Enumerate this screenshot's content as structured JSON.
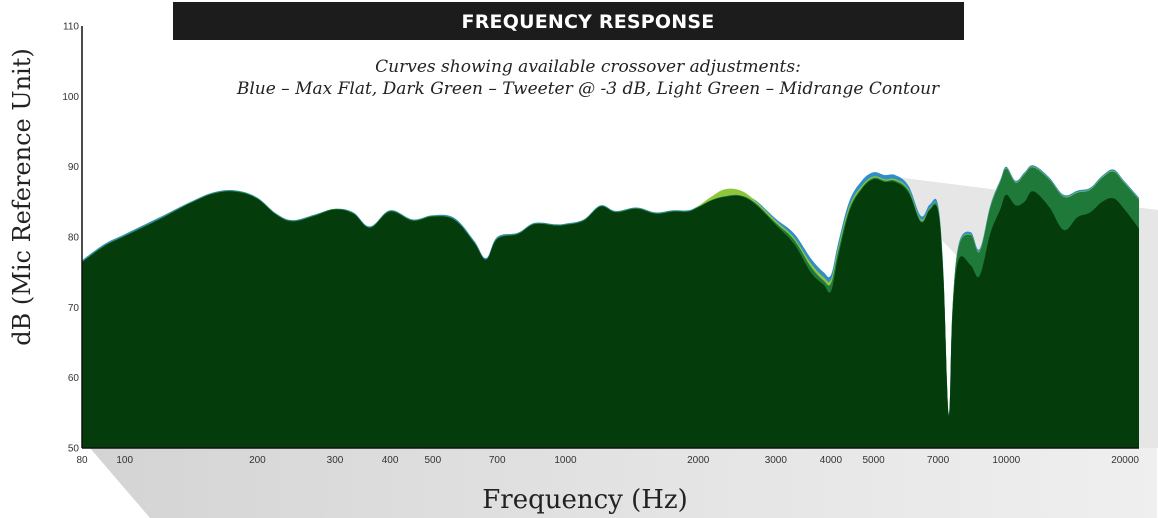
{
  "banner_title": "FREQUENCY RESPONSE",
  "subtitle_line1": "Curves showing available crossover adjustments:",
  "subtitle_line2": "Blue – Max Flat, Dark Green – Tweeter @ -3 dB, Light Green – Midrange Contour",
  "colors": {
    "background": "#ffffff",
    "banner": "#1c1c1c",
    "shadow": "#d5d5d5"
  },
  "chart_data": {
    "type": "area",
    "xscale": "log",
    "xlabel": "Frequency (Hz)",
    "ylabel": "dB (Mic Reference Unit)",
    "xlim": [
      80,
      20000
    ],
    "ylim": [
      50,
      110
    ],
    "grid": false,
    "legend": "none",
    "yticks": [
      {
        "value": 50,
        "label": "50"
      },
      {
        "value": 60,
        "label": "60"
      },
      {
        "value": 70,
        "label": "70"
      },
      {
        "value": 80,
        "label": "80"
      },
      {
        "value": 90,
        "label": "90"
      },
      {
        "value": 100,
        "label": "100"
      },
      {
        "value": 110,
        "label": "110"
      }
    ],
    "xticks": [
      {
        "value": 80,
        "label": "80"
      },
      {
        "value": 100,
        "label": "100"
      },
      {
        "value": 200,
        "label": "200"
      },
      {
        "value": 300,
        "label": "300"
      },
      {
        "value": 400,
        "label": "400"
      },
      {
        "value": 500,
        "label": "500"
      },
      {
        "value": 700,
        "label": "700"
      },
      {
        "value": 1000,
        "label": "1000"
      },
      {
        "value": 2000,
        "label": "2000"
      },
      {
        "value": 3000,
        "label": "3000"
      },
      {
        "value": 4000,
        "label": "4000"
      },
      {
        "value": 5000,
        "label": "5000"
      },
      {
        "value": 7000,
        "label": "7000"
      },
      {
        "value": 10000,
        "label": "10000"
      },
      {
        "value": 20000,
        "label": "20000"
      }
    ],
    "series": [
      {
        "color": "#2f8ec9",
        "points": [
          [
            80,
            76.7
          ],
          [
            90,
            79.0
          ],
          [
            100,
            80.4
          ],
          [
            120,
            82.8
          ],
          [
            140,
            84.9
          ],
          [
            160,
            86.4
          ],
          [
            180,
            86.6
          ],
          [
            200,
            85.6
          ],
          [
            220,
            83.4
          ],
          [
            240,
            82.4
          ],
          [
            270,
            83.2
          ],
          [
            300,
            84.0
          ],
          [
            330,
            83.5
          ],
          [
            360,
            81.5
          ],
          [
            400,
            83.8
          ],
          [
            450,
            82.5
          ],
          [
            500,
            83.1
          ],
          [
            560,
            82.7
          ],
          [
            620,
            79.5
          ],
          [
            660,
            77.0
          ],
          [
            700,
            80.0
          ],
          [
            780,
            80.6
          ],
          [
            850,
            82.0
          ],
          [
            950,
            81.8
          ],
          [
            1000,
            81.9
          ],
          [
            1100,
            82.5
          ],
          [
            1200,
            84.5
          ],
          [
            1300,
            83.7
          ],
          [
            1450,
            84.2
          ],
          [
            1600,
            83.5
          ],
          [
            1750,
            83.8
          ],
          [
            1900,
            83.8
          ],
          [
            2000,
            84.4
          ],
          [
            2150,
            85.4
          ],
          [
            2300,
            86.0
          ],
          [
            2500,
            86.1
          ],
          [
            2700,
            85.2
          ],
          [
            3000,
            82.6
          ],
          [
            3300,
            80.5
          ],
          [
            3600,
            77.0
          ],
          [
            3850,
            75.0
          ],
          [
            4000,
            74.6
          ],
          [
            4150,
            79.0
          ],
          [
            4400,
            85.0
          ],
          [
            4700,
            88.0
          ],
          [
            5000,
            89.2
          ],
          [
            5300,
            88.8
          ],
          [
            5600,
            88.8
          ],
          [
            6000,
            87.3
          ],
          [
            6400,
            83.0
          ],
          [
            6700,
            84.6
          ],
          [
            7000,
            84.6
          ],
          [
            7200,
            75.0
          ],
          [
            7400,
            55.0
          ],
          [
            7550,
            70.0
          ],
          [
            7800,
            79.0
          ],
          [
            8300,
            80.7
          ],
          [
            8700,
            78.3
          ],
          [
            9200,
            84.5
          ],
          [
            9700,
            88.2
          ],
          [
            10000,
            90.0
          ],
          [
            10500,
            88.0
          ],
          [
            11000,
            89.2
          ],
          [
            11500,
            90.2
          ],
          [
            12500,
            88.5
          ],
          [
            13500,
            86.0
          ],
          [
            14500,
            86.6
          ],
          [
            15500,
            87.0
          ],
          [
            16500,
            88.7
          ],
          [
            17500,
            89.6
          ],
          [
            18500,
            88.0
          ],
          [
            20000,
            85.6
          ]
        ]
      },
      {
        "color": "#8fc53c",
        "points": [
          [
            80,
            76.5
          ],
          [
            90,
            78.8
          ],
          [
            100,
            80.2
          ],
          [
            120,
            82.6
          ],
          [
            140,
            84.8
          ],
          [
            160,
            86.3
          ],
          [
            180,
            86.5
          ],
          [
            200,
            85.5
          ],
          [
            220,
            83.3
          ],
          [
            240,
            82.3
          ],
          [
            270,
            83.1
          ],
          [
            300,
            84.0
          ],
          [
            330,
            83.4
          ],
          [
            360,
            81.4
          ],
          [
            400,
            83.7
          ],
          [
            450,
            82.4
          ],
          [
            500,
            83.0
          ],
          [
            560,
            82.5
          ],
          [
            620,
            79.3
          ],
          [
            660,
            76.8
          ],
          [
            700,
            79.8
          ],
          [
            780,
            80.5
          ],
          [
            850,
            81.9
          ],
          [
            950,
            81.7
          ],
          [
            1000,
            81.8
          ],
          [
            1100,
            82.4
          ],
          [
            1200,
            84.4
          ],
          [
            1300,
            83.6
          ],
          [
            1450,
            84.1
          ],
          [
            1600,
            83.4
          ],
          [
            1750,
            83.7
          ],
          [
            1900,
            83.7
          ],
          [
            2000,
            84.4
          ],
          [
            2150,
            85.8
          ],
          [
            2300,
            86.8
          ],
          [
            2500,
            86.6
          ],
          [
            2700,
            85.1
          ],
          [
            3000,
            82.3
          ],
          [
            3300,
            79.9
          ],
          [
            3600,
            76.3
          ],
          [
            3850,
            74.3
          ],
          [
            4000,
            73.9
          ],
          [
            4150,
            78.3
          ],
          [
            4400,
            84.3
          ],
          [
            4700,
            87.3
          ],
          [
            5000,
            88.6
          ],
          [
            5300,
            88.2
          ],
          [
            5600,
            88.2
          ],
          [
            6000,
            86.8
          ],
          [
            6400,
            82.5
          ],
          [
            6700,
            84.1
          ],
          [
            7000,
            84.1
          ],
          [
            7200,
            74.5
          ],
          [
            7400,
            54.7
          ],
          [
            7550,
            69.6
          ],
          [
            7800,
            78.7
          ],
          [
            8300,
            80.4
          ],
          [
            8700,
            78.0
          ],
          [
            9200,
            84.3
          ],
          [
            9700,
            88.0
          ],
          [
            10000,
            89.8
          ],
          [
            10500,
            87.8
          ],
          [
            11000,
            89.0
          ],
          [
            11500,
            90.0
          ],
          [
            12500,
            88.3
          ],
          [
            13500,
            85.8
          ],
          [
            14500,
            86.4
          ],
          [
            15500,
            86.8
          ],
          [
            16500,
            88.5
          ],
          [
            17500,
            89.4
          ],
          [
            18500,
            87.8
          ],
          [
            20000,
            85.4
          ]
        ]
      },
      {
        "color": "#1f7a3a",
        "points": [
          [
            80,
            76.5
          ],
          [
            90,
            78.8
          ],
          [
            100,
            80.2
          ],
          [
            120,
            82.6
          ],
          [
            140,
            84.8
          ],
          [
            160,
            86.3
          ],
          [
            180,
            86.5
          ],
          [
            200,
            85.5
          ],
          [
            220,
            83.3
          ],
          [
            240,
            82.3
          ],
          [
            270,
            83.1
          ],
          [
            300,
            84.0
          ],
          [
            330,
            83.4
          ],
          [
            360,
            81.4
          ],
          [
            400,
            83.7
          ],
          [
            450,
            82.4
          ],
          [
            500,
            83.0
          ],
          [
            560,
            82.5
          ],
          [
            620,
            79.3
          ],
          [
            660,
            76.8
          ],
          [
            700,
            79.8
          ],
          [
            780,
            80.5
          ],
          [
            850,
            81.9
          ],
          [
            950,
            81.7
          ],
          [
            1000,
            81.8
          ],
          [
            1100,
            82.4
          ],
          [
            1200,
            84.4
          ],
          [
            1300,
            83.6
          ],
          [
            1450,
            84.1
          ],
          [
            1600,
            83.4
          ],
          [
            1750,
            83.7
          ],
          [
            1900,
            83.7
          ],
          [
            2000,
            84.3
          ],
          [
            2150,
            85.3
          ],
          [
            2300,
            85.8
          ],
          [
            2500,
            85.9
          ],
          [
            2700,
            84.8
          ],
          [
            3000,
            82.0
          ],
          [
            3300,
            79.6
          ],
          [
            3600,
            75.8
          ],
          [
            3850,
            73.8
          ],
          [
            4000,
            73.4
          ],
          [
            4150,
            77.8
          ],
          [
            4400,
            83.9
          ],
          [
            4700,
            87.0
          ],
          [
            5000,
            88.4
          ],
          [
            5300,
            88.0
          ],
          [
            5600,
            88.0
          ],
          [
            6000,
            86.6
          ],
          [
            6400,
            82.3
          ],
          [
            6700,
            84.0
          ],
          [
            7000,
            84.0
          ],
          [
            7200,
            74.5
          ],
          [
            7400,
            54.7
          ],
          [
            7550,
            69.6
          ],
          [
            7800,
            78.6
          ],
          [
            8300,
            80.3
          ],
          [
            8700,
            77.9
          ],
          [
            9200,
            84.2
          ],
          [
            9700,
            87.9
          ],
          [
            10000,
            89.7
          ],
          [
            10500,
            87.7
          ],
          [
            11000,
            88.9
          ],
          [
            11500,
            89.9
          ],
          [
            12500,
            88.2
          ],
          [
            13500,
            85.7
          ],
          [
            14500,
            86.3
          ],
          [
            15500,
            86.7
          ],
          [
            16500,
            88.4
          ],
          [
            17500,
            89.3
          ],
          [
            18500,
            87.7
          ],
          [
            20000,
            85.3
          ]
        ]
      },
      {
        "color": "#043c0c",
        "points": [
          [
            80,
            76.4
          ],
          [
            90,
            78.7
          ],
          [
            100,
            80.1
          ],
          [
            120,
            82.5
          ],
          [
            140,
            84.7
          ],
          [
            160,
            86.2
          ],
          [
            180,
            86.4
          ],
          [
            200,
            85.4
          ],
          [
            220,
            83.2
          ],
          [
            240,
            82.2
          ],
          [
            270,
            83.0
          ],
          [
            300,
            83.9
          ],
          [
            330,
            83.3
          ],
          [
            360,
            81.3
          ],
          [
            400,
            83.6
          ],
          [
            450,
            82.3
          ],
          [
            500,
            82.9
          ],
          [
            560,
            82.4
          ],
          [
            620,
            79.2
          ],
          [
            660,
            76.8
          ],
          [
            700,
            79.7
          ],
          [
            780,
            80.4
          ],
          [
            850,
            81.8
          ],
          [
            950,
            81.6
          ],
          [
            1000,
            81.7
          ],
          [
            1100,
            82.3
          ],
          [
            1200,
            84.3
          ],
          [
            1300,
            83.5
          ],
          [
            1450,
            84.0
          ],
          [
            1600,
            83.3
          ],
          [
            1750,
            83.6
          ],
          [
            1900,
            83.6
          ],
          [
            2000,
            84.2
          ],
          [
            2150,
            85.2
          ],
          [
            2300,
            85.7
          ],
          [
            2500,
            85.8
          ],
          [
            2700,
            84.6
          ],
          [
            3000,
            81.7
          ],
          [
            3300,
            79.0
          ],
          [
            3600,
            75.0
          ],
          [
            3850,
            73.2
          ],
          [
            4000,
            72.3
          ],
          [
            4150,
            77.0
          ],
          [
            4400,
            83.5
          ],
          [
            4700,
            86.8
          ],
          [
            5000,
            88.2
          ],
          [
            5300,
            87.8
          ],
          [
            5600,
            87.8
          ],
          [
            6000,
            86.3
          ],
          [
            6400,
            82.1
          ],
          [
            6700,
            83.8
          ],
          [
            7000,
            83.7
          ],
          [
            7200,
            74.2
          ],
          [
            7400,
            54.6
          ],
          [
            7550,
            69.0
          ],
          [
            7800,
            76.8
          ],
          [
            8300,
            76.0
          ],
          [
            8700,
            74.5
          ],
          [
            9200,
            80.5
          ],
          [
            9700,
            84.0
          ],
          [
            10000,
            86.0
          ],
          [
            10500,
            84.5
          ],
          [
            11000,
            85.0
          ],
          [
            11500,
            86.5
          ],
          [
            12500,
            84.3
          ],
          [
            13500,
            81.0
          ],
          [
            14500,
            82.8
          ],
          [
            15500,
            83.5
          ],
          [
            16500,
            85.0
          ],
          [
            17500,
            85.5
          ],
          [
            18500,
            84.0
          ],
          [
            20000,
            81.2
          ]
        ]
      }
    ]
  }
}
